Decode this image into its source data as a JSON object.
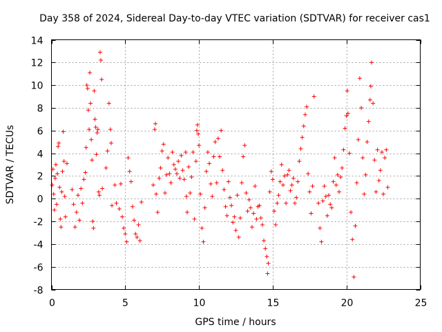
{
  "chart_data": {
    "type": "scatter",
    "title": "Day 358 of 2024, Sidereal Day-to-day VTEC variation (SDTVAR) for receiver cas1",
    "xlabel": "GPS time / hours",
    "ylabel": "SDTVAR / TECUs",
    "xlim": [
      0,
      25
    ],
    "ylim": [
      -8,
      14
    ],
    "x_ticks": [
      0,
      5,
      10,
      15,
      20,
      25
    ],
    "y_ticks": [
      -8,
      -6,
      -4,
      -2,
      0,
      2,
      4,
      6,
      8,
      10,
      12,
      14
    ],
    "grid": true,
    "marker": "+",
    "series_color": "#ff0000",
    "series": [
      {
        "name": "SDTVAR",
        "points": [
          [
            0.05,
            1.2
          ],
          [
            0.1,
            2.6
          ],
          [
            0.15,
            0.4
          ],
          [
            0.2,
            -1.0
          ],
          [
            0.25,
            1.8
          ],
          [
            0.3,
            3.0
          ],
          [
            0.35,
            -0.5
          ],
          [
            0.4,
            2.2
          ],
          [
            0.45,
            4.6
          ],
          [
            0.5,
            4.9
          ],
          [
            0.55,
            1.0
          ],
          [
            0.6,
            -1.8
          ],
          [
            0.65,
            -2.5
          ],
          [
            0.7,
            0.6
          ],
          [
            0.75,
            2.4
          ],
          [
            0.8,
            5.9
          ],
          [
            0.85,
            3.3
          ],
          [
            0.9,
            0.2
          ],
          [
            0.95,
            -1.6
          ],
          [
            1.05,
            3.1
          ],
          [
            1.4,
            0.8
          ],
          [
            1.5,
            -0.5
          ],
          [
            1.6,
            -2.5
          ],
          [
            1.7,
            -1.2
          ],
          [
            1.8,
            0.3
          ],
          [
            1.9,
            -1.9
          ],
          [
            2.0,
            0.9
          ],
          [
            2.1,
            -0.4
          ],
          [
            2.2,
            1.7
          ],
          [
            2.3,
            2.3
          ],
          [
            2.35,
            4.5
          ],
          [
            2.4,
            10.0
          ],
          [
            2.45,
            9.7
          ],
          [
            2.5,
            7.8
          ],
          [
            2.55,
            6.1
          ],
          [
            2.6,
            11.1
          ],
          [
            2.65,
            8.4
          ],
          [
            2.7,
            5.2
          ],
          [
            2.75,
            3.4
          ],
          [
            2.8,
            -2.0
          ],
          [
            2.85,
            -2.6
          ],
          [
            2.9,
            9.5
          ],
          [
            2.95,
            7.0
          ],
          [
            3.0,
            6.3
          ],
          [
            3.05,
            3.9
          ],
          [
            3.1,
            5.8
          ],
          [
            3.15,
            6.1
          ],
          [
            3.2,
            0.6
          ],
          [
            3.25,
            0.3
          ],
          [
            3.3,
            12.9
          ],
          [
            3.35,
            12.2
          ],
          [
            3.4,
            10.5
          ],
          [
            3.45,
            0.9
          ],
          [
            3.7,
            2.7
          ],
          [
            3.8,
            4.2
          ],
          [
            3.9,
            8.4
          ],
          [
            4.0,
            6.1
          ],
          [
            4.05,
            4.9
          ],
          [
            4.1,
            -0.6
          ],
          [
            4.3,
            1.2
          ],
          [
            4.4,
            -0.4
          ],
          [
            4.6,
            -0.9
          ],
          [
            4.7,
            1.3
          ],
          [
            4.8,
            -1.6
          ],
          [
            4.9,
            -2.6
          ],
          [
            5.0,
            -3.1
          ],
          [
            5.1,
            -3.8
          ],
          [
            5.2,
            3.6
          ],
          [
            5.3,
            2.4
          ],
          [
            5.4,
            1.5
          ],
          [
            5.5,
            -0.7
          ],
          [
            5.6,
            -1.9
          ],
          [
            5.7,
            -3.1
          ],
          [
            5.8,
            -3.4
          ],
          [
            5.9,
            -2.3
          ],
          [
            6.0,
            -3.7
          ],
          [
            6.1,
            -0.3
          ],
          [
            6.9,
            1.2
          ],
          [
            7.0,
            6.1
          ],
          [
            7.05,
            6.6
          ],
          [
            7.1,
            0.4
          ],
          [
            7.2,
            -1.2
          ],
          [
            7.3,
            1.8
          ],
          [
            7.4,
            2.7
          ],
          [
            7.5,
            4.2
          ],
          [
            7.6,
            4.8
          ],
          [
            7.7,
            0.5
          ],
          [
            7.8,
            2.1
          ],
          [
            7.9,
            3.6
          ],
          [
            8.0,
            2.2
          ],
          [
            8.1,
            1.4
          ],
          [
            8.2,
            4.1
          ],
          [
            8.3,
            3.0
          ],
          [
            8.4,
            2.6
          ],
          [
            8.5,
            2.2
          ],
          [
            8.6,
            3.3
          ],
          [
            8.7,
            1.8
          ],
          [
            8.8,
            3.8
          ],
          [
            8.9,
            2.5
          ],
          [
            9.0,
            1.7
          ],
          [
            9.1,
            4.1
          ],
          [
            9.15,
            0.2
          ],
          [
            9.2,
            -1.2
          ],
          [
            9.3,
            2.8
          ],
          [
            9.4,
            0.5
          ],
          [
            9.5,
            1.9
          ],
          [
            9.6,
            4.1
          ],
          [
            9.7,
            -1.8
          ],
          [
            9.8,
            3.3
          ],
          [
            9.85,
            6.0
          ],
          [
            9.9,
            6.5
          ],
          [
            9.95,
            5.7
          ],
          [
            10.0,
            4.7
          ],
          [
            10.1,
            0.4
          ],
          [
            10.2,
            -2.6
          ],
          [
            10.3,
            -3.8
          ],
          [
            10.4,
            -0.8
          ],
          [
            10.5,
            2.4
          ],
          [
            10.6,
            4.1
          ],
          [
            10.7,
            3.1
          ],
          [
            10.8,
            1.3
          ],
          [
            10.9,
            0.2
          ],
          [
            11.0,
            3.7
          ],
          [
            11.1,
            5.0
          ],
          [
            11.2,
            1.4
          ],
          [
            11.3,
            5.3
          ],
          [
            11.4,
            3.7
          ],
          [
            11.5,
            6.0
          ],
          [
            11.6,
            2.5
          ],
          [
            11.7,
            0.8
          ],
          [
            11.8,
            -0.7
          ],
          [
            11.9,
            -1.5
          ],
          [
            12.0,
            1.5
          ],
          [
            12.1,
            0.1
          ],
          [
            12.2,
            -0.6
          ],
          [
            12.3,
            -2.1
          ],
          [
            12.4,
            -1.6
          ],
          [
            12.5,
            -2.8
          ],
          [
            12.6,
            0.3
          ],
          [
            12.7,
            -3.4
          ],
          [
            12.8,
            -1.7
          ],
          [
            12.9,
            1.4
          ],
          [
            13.0,
            3.7
          ],
          [
            13.1,
            4.7
          ],
          [
            13.2,
            0.5
          ],
          [
            13.3,
            -1.1
          ],
          [
            13.4,
            -0.1
          ],
          [
            13.5,
            -0.8
          ],
          [
            13.6,
            -2.5
          ],
          [
            13.7,
            -1.3
          ],
          [
            13.8,
            1.1
          ],
          [
            13.9,
            -1.8
          ],
          [
            14.0,
            -0.7
          ],
          [
            14.1,
            -0.6
          ],
          [
            14.2,
            -1.7
          ],
          [
            14.3,
            -2.3
          ],
          [
            14.4,
            -3.7
          ],
          [
            14.5,
            -4.4
          ],
          [
            14.6,
            -5.1
          ],
          [
            14.65,
            -6.6
          ],
          [
            14.7,
            -5.7
          ],
          [
            14.8,
            0.6
          ],
          [
            14.9,
            2.4
          ],
          [
            15.0,
            1.7
          ],
          [
            15.1,
            -1.1
          ],
          [
            15.2,
            -2.3
          ],
          [
            15.3,
            -0.4
          ],
          [
            15.4,
            0.3
          ],
          [
            15.5,
            1.5
          ],
          [
            15.6,
            3.0
          ],
          [
            15.7,
            1.2
          ],
          [
            15.8,
            2.0
          ],
          [
            15.9,
            -0.4
          ],
          [
            16.0,
            2.1
          ],
          [
            16.1,
            2.5
          ],
          [
            16.2,
            0.7
          ],
          [
            16.3,
            1.2
          ],
          [
            16.4,
            1.8
          ],
          [
            16.5,
            -0.4
          ],
          [
            16.6,
            0.1
          ],
          [
            16.7,
            1.5
          ],
          [
            16.8,
            3.3
          ],
          [
            16.9,
            4.4
          ],
          [
            17.0,
            5.4
          ],
          [
            17.1,
            6.4
          ],
          [
            17.2,
            7.4
          ],
          [
            17.3,
            8.1
          ],
          [
            17.4,
            2.2
          ],
          [
            17.5,
            0.6
          ],
          [
            17.6,
            -1.3
          ],
          [
            17.7,
            1.1
          ],
          [
            17.8,
            9.0
          ],
          [
            18.1,
            -0.4
          ],
          [
            18.2,
            -2.6
          ],
          [
            18.3,
            -3.8
          ],
          [
            18.4,
            -0.2
          ],
          [
            18.5,
            1.1
          ],
          [
            18.6,
            0.2
          ],
          [
            18.7,
            -1.5
          ],
          [
            18.8,
            0.3
          ],
          [
            18.9,
            -0.5
          ],
          [
            19.0,
            -0.8
          ],
          [
            19.1,
            1.5
          ],
          [
            19.2,
            3.6
          ],
          [
            19.3,
            1.2
          ],
          [
            19.4,
            2.1
          ],
          [
            19.5,
            0.6
          ],
          [
            19.6,
            1.9
          ],
          [
            19.7,
            2.7
          ],
          [
            19.8,
            4.3
          ],
          [
            19.9,
            6.2
          ],
          [
            20.0,
            7.3
          ],
          [
            20.05,
            9.5
          ],
          [
            20.1,
            7.5
          ],
          [
            20.2,
            4.0
          ],
          [
            20.3,
            -1.2
          ],
          [
            20.4,
            -3.6
          ],
          [
            20.5,
            -6.9
          ],
          [
            20.6,
            -2.4
          ],
          [
            20.7,
            1.4
          ],
          [
            20.8,
            5.2
          ],
          [
            20.9,
            10.6
          ],
          [
            21.0,
            8.0
          ],
          [
            21.1,
            3.6
          ],
          [
            21.2,
            0.4
          ],
          [
            21.3,
            2.1
          ],
          [
            21.4,
            5.0
          ],
          [
            21.5,
            6.8
          ],
          [
            21.6,
            8.7
          ],
          [
            21.65,
            9.9
          ],
          [
            21.7,
            12.0
          ],
          [
            21.8,
            8.4
          ],
          [
            21.9,
            3.4
          ],
          [
            22.0,
            0.6
          ],
          [
            22.1,
            4.3
          ],
          [
            22.2,
            1.6
          ],
          [
            22.3,
            2.5
          ],
          [
            22.4,
            4.1
          ],
          [
            22.5,
            0.4
          ],
          [
            22.6,
            3.6
          ],
          [
            22.7,
            4.3
          ],
          [
            22.8,
            1.0
          ]
        ]
      }
    ]
  }
}
